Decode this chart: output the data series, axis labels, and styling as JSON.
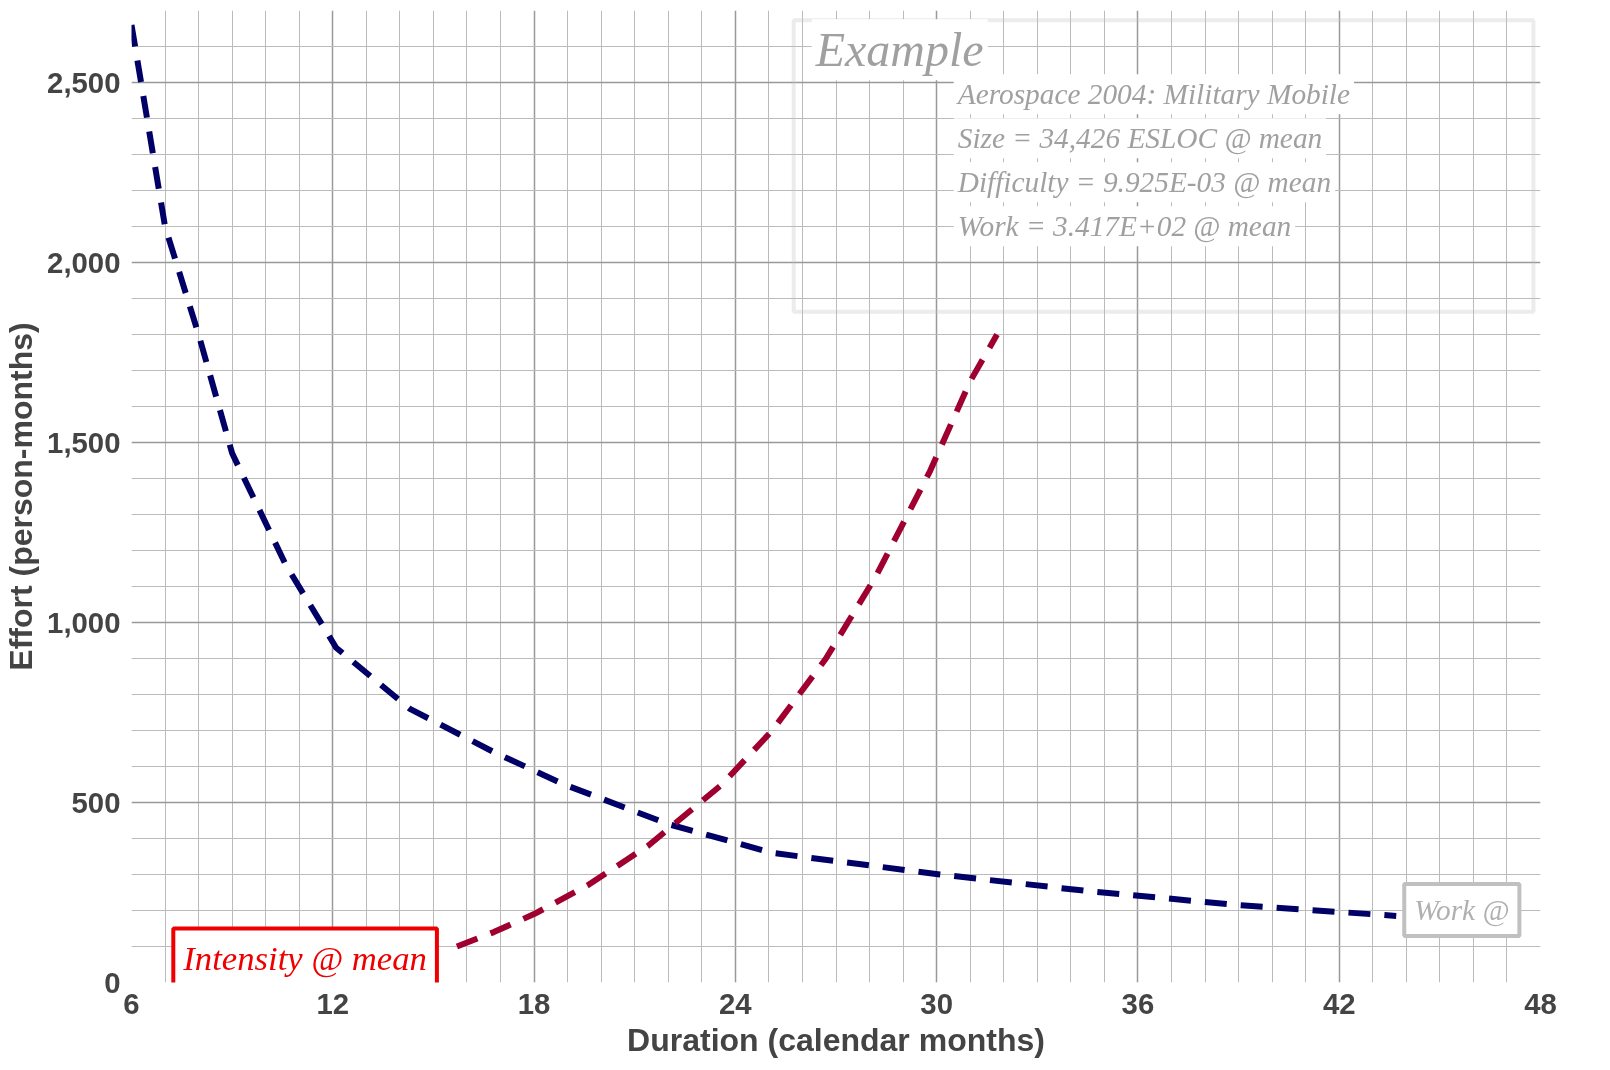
{
  "chart_data": {
    "type": "line",
    "xlabel": "Duration (calendar months)",
    "ylabel": "Effort (person-months)",
    "xlim": [
      6,
      48
    ],
    "ylim": [
      0,
      2700
    ],
    "xticks": [
      6,
      12,
      18,
      24,
      30,
      36,
      42,
      48
    ],
    "yticks": [
      0,
      {
        "value": 500,
        "label": "500"
      },
      {
        "value": 1000,
        "label": "1,000"
      },
      {
        "value": 1500,
        "label": "1,500"
      },
      {
        "value": 2000,
        "label": "2,000"
      },
      {
        "value": 2500,
        "label": "2,500"
      }
    ],
    "grid": true,
    "line_style": "dashed",
    "marker": "none",
    "series": [
      {
        "name": "Work @",
        "color": "#000066",
        "x": [
          6.0,
          7.0,
          8.0,
          9.0,
          10.6,
          12.1,
          14.3,
          16.8,
          18.9,
          22.0,
          25.1,
          30.1,
          34.4,
          39.0,
          43.7
        ],
        "values": [
          2660,
          2100,
          1800,
          1470,
          1160,
          930,
          760,
          640,
          550,
          440,
          360,
          300,
          255,
          215,
          185
        ]
      },
      {
        "name": "Intensity @ mean",
        "color": "#a00030",
        "x": [
          15.7,
          16.8,
          18.0,
          19.6,
          21.4,
          23.6,
          25.1,
          26.7,
          28.2,
          29.8,
          31.0,
          31.8
        ],
        "values": [
          100,
          140,
          190,
          270,
          380,
          550,
          700,
          900,
          1130,
          1420,
          1670,
          1800
        ]
      }
    ],
    "annotations": [
      "Example",
      "Aerospace 2004: Military Mobile",
      "Size = 34,426 ESLOC @ mean",
      "Difficulty = 9.925E-03 @ mean",
      "Work = 3.417E+02 @ mean"
    ]
  }
}
